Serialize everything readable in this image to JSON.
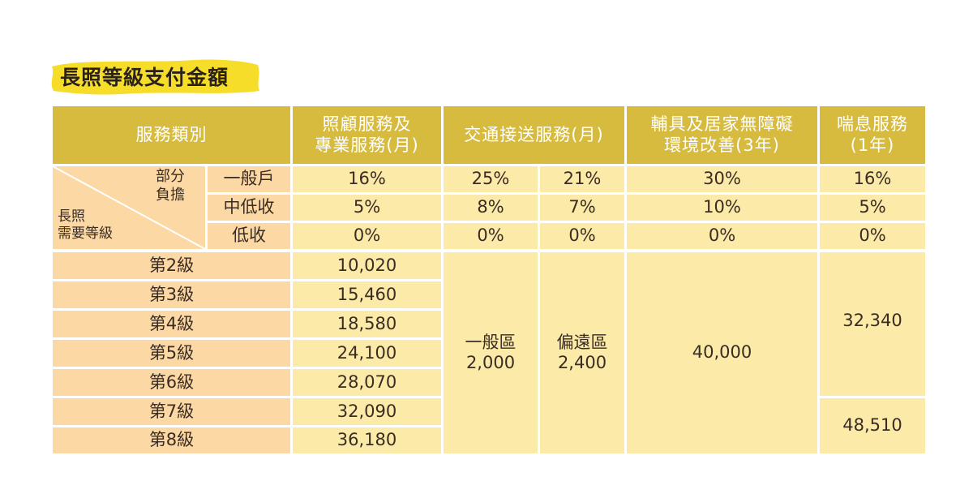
{
  "title": "長照等級支付金額",
  "header": {
    "category": "服務類別",
    "care": [
      "照顧服務及",
      "專業服務(月)"
    ],
    "transport": "交通接送服務(月)",
    "assistive": [
      "輔具及居家無障礙",
      "環境改善(3年)"
    ],
    "respite": [
      "喘息服務",
      "(1年)"
    ]
  },
  "partial_burden": [
    "部分",
    "負擔"
  ],
  "level_axis": [
    "長照",
    "需要等級"
  ],
  "burden_rows": [
    {
      "label": "一般戶",
      "care": "16%",
      "transport_general": "25%",
      "transport_remote": "21%",
      "assistive": "30%",
      "respite": "16%"
    },
    {
      "label": "中低收",
      "care": "5%",
      "transport_general": "8%",
      "transport_remote": "7%",
      "assistive": "10%",
      "respite": "5%"
    },
    {
      "label": "低收",
      "care": "0%",
      "transport_general": "0%",
      "transport_remote": "0%",
      "assistive": "0%",
      "respite": "0%"
    }
  ],
  "levels": [
    {
      "level": "第2級",
      "care": "10,020"
    },
    {
      "level": "第3級",
      "care": "15,460"
    },
    {
      "level": "第4級",
      "care": "18,580"
    },
    {
      "level": "第5級",
      "care": "24,100"
    },
    {
      "level": "第6級",
      "care": "28,070"
    },
    {
      "level": "第7級",
      "care": "32,090"
    },
    {
      "level": "第8級",
      "care": "36,180"
    }
  ],
  "transport_amounts": {
    "general": {
      "area": "一般區",
      "amount": "2,000"
    },
    "remote": {
      "area": "偏遠區",
      "amount": "2,400"
    }
  },
  "assistive_amount": "40,000",
  "respite_amounts": {
    "levels_2_6": "32,340",
    "levels_7_8": "48,510"
  },
  "colors": {
    "header": "#d6bb3e",
    "cream": "#fbeaa8",
    "peach": "#fcd9a4",
    "brush": "#f5dd2a"
  }
}
